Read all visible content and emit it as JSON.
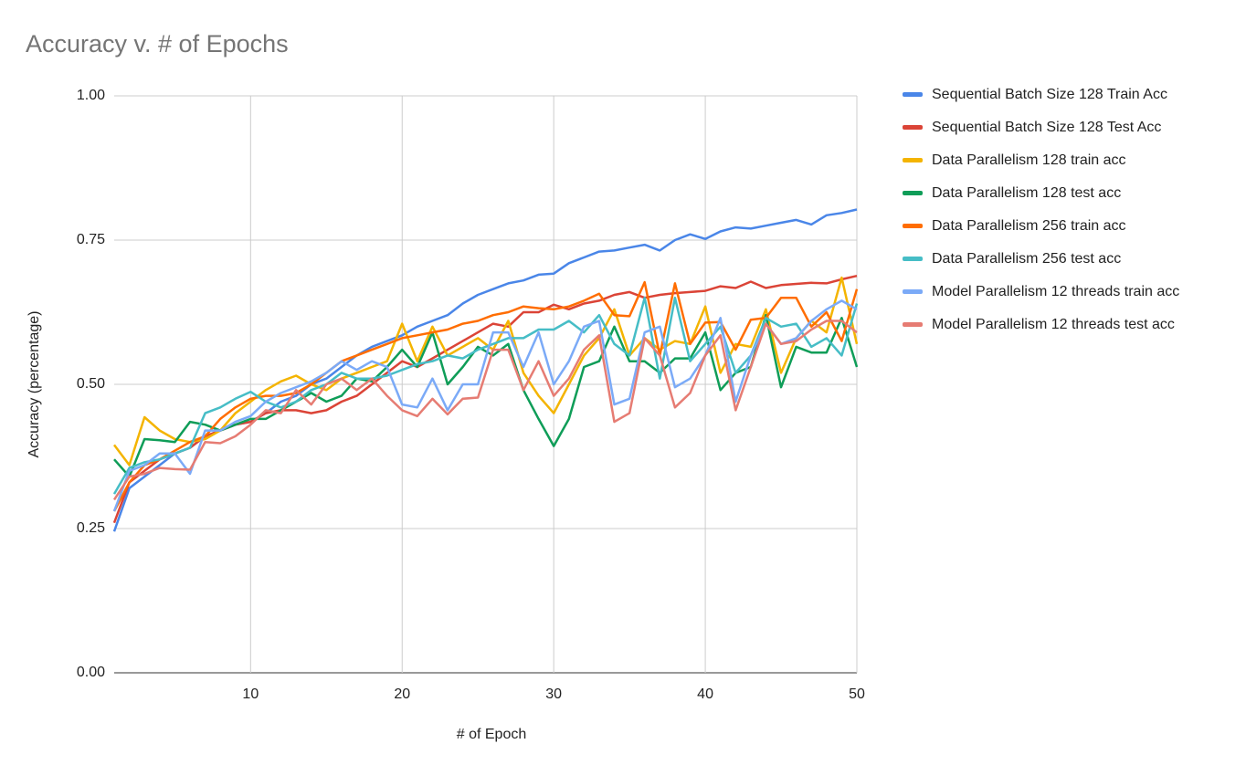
{
  "chart_data": {
    "type": "line",
    "title": "Accuracy v. # of Epochs",
    "x_label": "# of Epoch",
    "y_label": "Accuracy (percentage)",
    "x": [
      1,
      2,
      3,
      4,
      5,
      6,
      7,
      8,
      9,
      10,
      11,
      12,
      13,
      14,
      15,
      16,
      17,
      18,
      19,
      20,
      21,
      22,
      23,
      24,
      25,
      26,
      27,
      28,
      29,
      30,
      31,
      32,
      33,
      34,
      35,
      36,
      37,
      38,
      39,
      40,
      41,
      42,
      43,
      44,
      45,
      46,
      47,
      48,
      49,
      50
    ],
    "xlim": [
      1,
      50
    ],
    "xticks": [
      10,
      20,
      30,
      40,
      50
    ],
    "ylim": [
      0,
      1
    ],
    "yticks": [
      {
        "value": 0,
        "label": "0.00"
      },
      {
        "value": 0.25,
        "label": "0.25"
      },
      {
        "value": 0.5,
        "label": "0.50"
      },
      {
        "value": 0.75,
        "label": "0.75"
      },
      {
        "value": 1,
        "label": "1.00"
      }
    ],
    "grid": true,
    "legend": "right",
    "series": [
      {
        "name": "Sequential Batch Size 128 Train Acc",
        "color": "#4a86e8",
        "values": [
          0.245,
          0.32,
          0.34,
          0.36,
          0.38,
          0.39,
          0.41,
          0.42,
          0.43,
          0.435,
          0.45,
          0.47,
          0.48,
          0.5,
          0.51,
          0.53,
          0.55,
          0.565,
          0.575,
          0.585,
          0.6,
          0.61,
          0.62,
          0.64,
          0.655,
          0.665,
          0.675,
          0.68,
          0.69,
          0.692,
          0.71,
          0.72,
          0.73,
          0.732,
          0.737,
          0.742,
          0.732,
          0.75,
          0.76,
          0.752,
          0.765,
          0.772,
          0.77,
          0.775,
          0.78,
          0.785,
          0.777,
          0.793,
          0.797,
          0.803
        ]
      },
      {
        "name": "Sequential Batch Size 128 Test Acc",
        "color": "#db4437",
        "values": [
          0.26,
          0.33,
          0.35,
          0.37,
          0.38,
          0.39,
          0.41,
          0.42,
          0.43,
          0.435,
          0.45,
          0.455,
          0.455,
          0.45,
          0.455,
          0.47,
          0.48,
          0.5,
          0.52,
          0.54,
          0.53,
          0.545,
          0.56,
          0.575,
          0.59,
          0.605,
          0.6,
          0.625,
          0.625,
          0.638,
          0.63,
          0.64,
          0.645,
          0.655,
          0.66,
          0.65,
          0.655,
          0.658,
          0.66,
          0.662,
          0.67,
          0.667,
          0.678,
          0.667,
          0.672,
          0.674,
          0.676,
          0.675,
          0.682,
          0.688
        ]
      },
      {
        "name": "Data Parallelism 128 train acc",
        "color": "#f4b400",
        "values": [
          0.395,
          0.36,
          0.443,
          0.42,
          0.405,
          0.4,
          0.405,
          0.42,
          0.45,
          0.47,
          0.49,
          0.505,
          0.515,
          0.5,
          0.49,
          0.51,
          0.52,
          0.53,
          0.54,
          0.605,
          0.54,
          0.6,
          0.55,
          0.565,
          0.58,
          0.56,
          0.61,
          0.52,
          0.48,
          0.45,
          0.5,
          0.55,
          0.58,
          0.63,
          0.55,
          0.58,
          0.56,
          0.575,
          0.57,
          0.635,
          0.52,
          0.57,
          0.565,
          0.63,
          0.52,
          0.58,
          0.61,
          0.59,
          0.685,
          0.57
        ]
      },
      {
        "name": "Data Parallelism 128 test acc",
        "color": "#0f9d58",
        "values": [
          0.37,
          0.34,
          0.405,
          0.403,
          0.4,
          0.435,
          0.43,
          0.42,
          0.43,
          0.44,
          0.44,
          0.455,
          0.47,
          0.485,
          0.47,
          0.48,
          0.51,
          0.505,
          0.53,
          0.56,
          0.53,
          0.59,
          0.5,
          0.53,
          0.565,
          0.55,
          0.57,
          0.49,
          0.44,
          0.393,
          0.44,
          0.53,
          0.54,
          0.6,
          0.54,
          0.54,
          0.52,
          0.545,
          0.545,
          0.59,
          0.49,
          0.52,
          0.53,
          0.62,
          0.495,
          0.565,
          0.555,
          0.555,
          0.615,
          0.53
        ]
      },
      {
        "name": "Data Parallelism 256 train acc",
        "color": "#ff6d01",
        "values": [
          0.28,
          0.33,
          0.36,
          0.37,
          0.385,
          0.4,
          0.41,
          0.44,
          0.46,
          0.475,
          0.48,
          0.48,
          0.485,
          0.5,
          0.52,
          0.54,
          0.55,
          0.56,
          0.57,
          0.58,
          0.585,
          0.59,
          0.595,
          0.605,
          0.61,
          0.62,
          0.625,
          0.635,
          0.632,
          0.63,
          0.635,
          0.645,
          0.657,
          0.62,
          0.618,
          0.677,
          0.55,
          0.675,
          0.57,
          0.607,
          0.608,
          0.56,
          0.612,
          0.615,
          0.65,
          0.65,
          0.6,
          0.625,
          0.575,
          0.665
        ]
      },
      {
        "name": "Data Parallelism 256 test acc",
        "color": "#46bdc6",
        "values": [
          0.31,
          0.355,
          0.365,
          0.37,
          0.38,
          0.39,
          0.45,
          0.46,
          0.475,
          0.487,
          0.47,
          0.46,
          0.47,
          0.49,
          0.5,
          0.52,
          0.51,
          0.51,
          0.515,
          0.525,
          0.535,
          0.54,
          0.55,
          0.545,
          0.56,
          0.57,
          0.58,
          0.58,
          0.595,
          0.595,
          0.61,
          0.59,
          0.62,
          0.57,
          0.55,
          0.65,
          0.51,
          0.65,
          0.54,
          0.57,
          0.6,
          0.52,
          0.55,
          0.615,
          0.6,
          0.605,
          0.565,
          0.58,
          0.55,
          0.64
        ]
      },
      {
        "name": "Model Parallelism 12 threads train acc",
        "color": "#7baaf7",
        "values": [
          0.28,
          0.35,
          0.36,
          0.38,
          0.38,
          0.345,
          0.42,
          0.42,
          0.435,
          0.445,
          0.47,
          0.485,
          0.495,
          0.505,
          0.52,
          0.54,
          0.525,
          0.54,
          0.53,
          0.465,
          0.46,
          0.51,
          0.455,
          0.5,
          0.5,
          0.59,
          0.59,
          0.53,
          0.59,
          0.5,
          0.54,
          0.6,
          0.61,
          0.465,
          0.475,
          0.59,
          0.6,
          0.495,
          0.51,
          0.55,
          0.615,
          0.47,
          0.55,
          0.605,
          0.57,
          0.58,
          0.61,
          0.63,
          0.645,
          0.63
        ]
      },
      {
        "name": "Model Parallelism 12 threads test acc",
        "color": "#e67c73",
        "values": [
          0.3,
          0.34,
          0.345,
          0.355,
          0.353,
          0.352,
          0.4,
          0.398,
          0.41,
          0.43,
          0.455,
          0.45,
          0.49,
          0.465,
          0.5,
          0.51,
          0.49,
          0.51,
          0.48,
          0.455,
          0.445,
          0.475,
          0.448,
          0.475,
          0.477,
          0.56,
          0.56,
          0.49,
          0.54,
          0.48,
          0.51,
          0.56,
          0.585,
          0.435,
          0.45,
          0.58,
          0.55,
          0.46,
          0.485,
          0.55,
          0.585,
          0.455,
          0.53,
          0.605,
          0.57,
          0.575,
          0.595,
          0.61,
          0.61,
          0.59
        ]
      }
    ]
  }
}
